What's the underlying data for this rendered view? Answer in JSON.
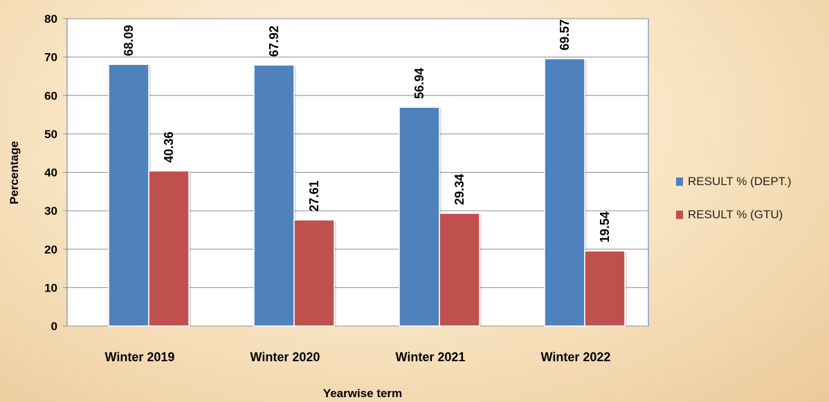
{
  "chart_data": {
    "type": "bar",
    "categories": [
      "Winter 2019",
      "Winter 2020",
      "Winter 2021",
      "Winter 2022"
    ],
    "series": [
      {
        "name": "RESULT % (DEPT.)",
        "values": [
          68.09,
          67.92,
          56.94,
          69.57
        ],
        "color": "#4f81bd"
      },
      {
        "name": "RESULT % (GTU)",
        "values": [
          40.36,
          27.61,
          29.34,
          19.54
        ],
        "color": "#c0504d"
      }
    ],
    "value_labels": [
      [
        "68.09",
        "67.92",
        "56.94",
        "69.57"
      ],
      [
        "40.36",
        "27.61",
        "29.34",
        "19.54"
      ]
    ],
    "xlabel": "Yearwise term",
    "ylabel": "Percentage",
    "ylim": [
      0,
      80
    ],
    "yticks": [
      0,
      10,
      20,
      30,
      40,
      50,
      60,
      70,
      80
    ],
    "grid": true,
    "legend_position": "right",
    "background": "#f8e4c2",
    "plot_background": "#ffffff"
  }
}
